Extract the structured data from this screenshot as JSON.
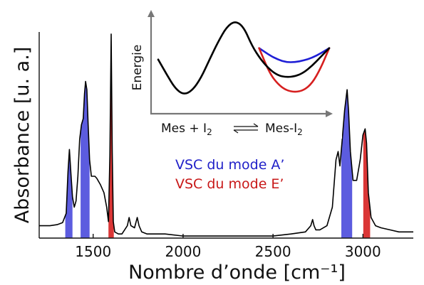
{
  "chart_data": [
    {
      "type": "line",
      "title": "",
      "xlabel": "Nombre d’onde [cm⁻¹]",
      "ylabel": "Absorbance [u. a.]",
      "xlim": [
        1200,
        3280
      ],
      "ylim": [
        0,
        1.0
      ],
      "x_ticks": [
        1500,
        2000,
        2500,
        3000
      ],
      "grid": false,
      "legend_position": "center",
      "series": [
        {
          "name": "",
          "color": "#000000",
          "x": [
            1200,
            1260,
            1300,
            1330,
            1350,
            1360,
            1368,
            1376,
            1385,
            1395,
            1405,
            1415,
            1425,
            1435,
            1445,
            1452,
            1458,
            1465,
            1472,
            1480,
            1490,
            1500,
            1510,
            1520,
            1540,
            1560,
            1575,
            1585,
            1593,
            1600,
            1606,
            1612,
            1620,
            1640,
            1660,
            1690,
            1700,
            1710,
            1730,
            1745,
            1755,
            1770,
            1800,
            1900,
            2000,
            2100,
            2200,
            2300,
            2400,
            2500,
            2600,
            2680,
            2710,
            2720,
            2728,
            2738,
            2760,
            2800,
            2830,
            2850,
            2862,
            2872,
            2885,
            2898,
            2912,
            2920,
            2930,
            2945,
            2965,
            2985,
            3000,
            3012,
            3020,
            3030,
            3045,
            3070,
            3100,
            3150,
            3200,
            3280
          ],
          "y": [
            0.06,
            0.06,
            0.065,
            0.075,
            0.12,
            0.32,
            0.43,
            0.32,
            0.2,
            0.15,
            0.18,
            0.3,
            0.48,
            0.55,
            0.58,
            0.7,
            0.76,
            0.72,
            0.55,
            0.38,
            0.3,
            0.3,
            0.3,
            0.29,
            0.26,
            0.22,
            0.15,
            0.08,
            0.4,
            0.99,
            0.42,
            0.08,
            0.03,
            0.02,
            0.02,
            0.06,
            0.1,
            0.06,
            0.05,
            0.1,
            0.06,
            0.03,
            0.02,
            0.02,
            0.01,
            0.01,
            0.01,
            0.01,
            0.01,
            0.01,
            0.02,
            0.03,
            0.06,
            0.09,
            0.06,
            0.04,
            0.04,
            0.06,
            0.15,
            0.38,
            0.42,
            0.35,
            0.48,
            0.62,
            0.72,
            0.62,
            0.42,
            0.28,
            0.28,
            0.38,
            0.5,
            0.53,
            0.46,
            0.22,
            0.1,
            0.06,
            0.05,
            0.04,
            0.03,
            0.03
          ]
        }
      ],
      "shaded_bands": [
        {
          "mode": "A'",
          "color": "#4a4adb",
          "x_range": [
            1345,
            1385
          ]
        },
        {
          "mode": "A'",
          "color": "#4a4adb",
          "x_range": [
            1430,
            1480
          ]
        },
        {
          "mode": "E'",
          "color": "#d62020",
          "x_range": [
            1585,
            1615
          ]
        },
        {
          "mode": "A'",
          "color": "#4a4adb",
          "x_range": [
            2880,
            2940
          ]
        },
        {
          "mode": "E'",
          "color": "#d62020",
          "x_range": [
            3002,
            3040
          ]
        }
      ],
      "legend": [
        {
          "label": "VSC du mode A’",
          "color": "#2020c8"
        },
        {
          "label": "VSC du mode E’",
          "color": "#c81818"
        }
      ]
    },
    {
      "type": "line",
      "title": "",
      "xlabel_parts": [
        "Mes + I",
        "2",
        "Mes-I",
        "2"
      ],
      "ylabel": "Energie",
      "x_ticks": [],
      "y_ticks": [],
      "series": [
        {
          "name": "",
          "color": "#000000",
          "x": [
            0,
            0.05,
            0.1,
            0.15,
            0.2,
            0.25,
            0.3,
            0.35,
            0.4,
            0.45,
            0.5,
            0.55,
            0.6,
            0.65,
            0.7,
            0.75,
            0.8,
            0.85,
            0.9,
            0.95,
            1.0
          ],
          "y": [
            0.55,
            0.38,
            0.22,
            0.15,
            0.2,
            0.34,
            0.55,
            0.75,
            0.92,
            0.99,
            0.92,
            0.7,
            0.55,
            0.44,
            0.37,
            0.35,
            0.36,
            0.4,
            0.48,
            0.58,
            0.68
          ]
        },
        {
          "name": "",
          "color": "#1f1fd6",
          "x": [
            0.59,
            0.65,
            0.7,
            0.75,
            0.8,
            0.85,
            0.9,
            0.95,
            1.0
          ],
          "y": [
            0.68,
            0.6,
            0.55,
            0.52,
            0.52,
            0.54,
            0.57,
            0.62,
            0.68
          ]
        },
        {
          "name": "",
          "color": "#d61f1f",
          "x": [
            0.59,
            0.65,
            0.7,
            0.75,
            0.8,
            0.85,
            0.9,
            0.95,
            1.0
          ],
          "y": [
            0.68,
            0.4,
            0.27,
            0.2,
            0.18,
            0.2,
            0.28,
            0.45,
            0.68
          ]
        }
      ]
    }
  ]
}
